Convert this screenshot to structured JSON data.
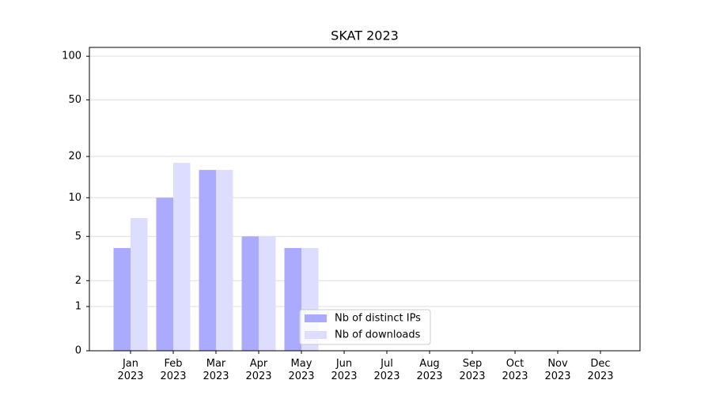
{
  "chart_data": {
    "type": "bar",
    "title": "SKAT 2023",
    "categories": [
      "Jan\n2023",
      "Feb\n2023",
      "Mar\n2023",
      "Apr\n2023",
      "May\n2023",
      "Jun\n2023",
      "Jul\n2023",
      "Aug\n2023",
      "Sep\n2023",
      "Oct\n2023",
      "Nov\n2023",
      "Dec\n2023"
    ],
    "series": [
      {
        "name": "Nb of distinct IPs",
        "color": "#aaaaff",
        "values": [
          4,
          10,
          16,
          5,
          4,
          null,
          null,
          null,
          null,
          null,
          null,
          null
        ]
      },
      {
        "name": "Nb of downloads",
        "color": "#ddddff",
        "values": [
          7,
          18,
          16,
          5,
          4,
          null,
          null,
          null,
          null,
          null,
          null,
          null
        ]
      }
    ],
    "yscale": "log1p",
    "ylim": [
      0,
      115
    ],
    "yticks": [
      0,
      1,
      2,
      5,
      10,
      20,
      50,
      100
    ],
    "grid": true,
    "legend": "lower center"
  }
}
